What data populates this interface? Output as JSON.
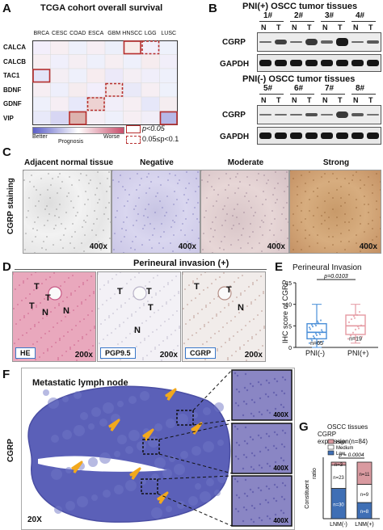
{
  "panels": {
    "A": {
      "letter": "A",
      "title": "TCGA cohort  overall survival",
      "columns": [
        "BRCA",
        "CESC",
        "COAD",
        "ESCA",
        "GBM",
        "HNSCC",
        "LGG",
        "LUSC"
      ],
      "rows": [
        "CALCA",
        "CALCB",
        "TAC1",
        "BDNF",
        "GDNF",
        "VIP"
      ],
      "legend_left": "Better",
      "legend_mid": "Prognosis",
      "legend_right": "Worse",
      "sig1": "p<0.05",
      "sig2": "0.05≤p<0.1"
    },
    "B": {
      "letter": "B",
      "title_top": "PNI(+) OSCC tumor tissues",
      "title_bottom": "PNI(-) OSCC tumor tissues",
      "samples_top": [
        "1#",
        "2#",
        "3#",
        "4#"
      ],
      "samples_bottom": [
        "5#",
        "6#",
        "7#",
        "8#"
      ],
      "lane_N": "N",
      "lane_T": "T",
      "row1": "CGRP",
      "row2": "GAPDH"
    },
    "C": {
      "letter": "C",
      "side": "CGRP staining",
      "cols": [
        "Adjacent normal tissue",
        "Negative",
        "Moderate",
        "Strong"
      ],
      "mag": "400x"
    },
    "D": {
      "letter": "D",
      "title": "Perineural invasion  (+)",
      "tags": [
        "HE",
        "PGP9.5",
        "CGRP"
      ],
      "mag": "200x",
      "T": "T",
      "N": "N"
    },
    "E": {
      "letter": "E",
      "title": "Perineural Invasion",
      "pval": "p=0.0103",
      "ylabel": "IHC score of CGRP",
      "n1": "n=65",
      "n2": "n=19",
      "x1": "PNI(-)",
      "x2": "PNI(+)",
      "yticks": [
        "15",
        "10",
        "5",
        "0"
      ]
    },
    "F": {
      "letter": "F",
      "side": "CGRP",
      "title": "Metastatic lymph node",
      "mag_main": "20X",
      "mag_inset": "400X"
    },
    "G": {
      "letter": "G",
      "title1": "OSCC tissues",
      "title2": "CGRP expression(n=84)",
      "legend": [
        "High",
        "Medium",
        "Low"
      ],
      "pval": "p = 0.0004",
      "ylabel1": "Constituent",
      "ylabel2": "ratio",
      "x1": "LNM(-)",
      "x2": "LNM(+)"
    }
  },
  "chart_data": {
    "type": "bar",
    "categories": [
      "LNM(-)",
      "LNM(+)"
    ],
    "series": [
      {
        "name": "Low",
        "values": [
          30,
          8
        ]
      },
      {
        "name": "Medium",
        "values": [
          23,
          9
        ]
      },
      {
        "name": "High",
        "values": [
          3,
          11
        ]
      }
    ],
    "ylabel": "Constituent ratio"
  },
  "colors": {
    "blue_label": "#3a78c9",
    "red_sig": "#b83030",
    "arrow": "#f2a81d",
    "he_pink": "#e7a3b9",
    "ihc_purple": "#8a86c4",
    "box_blue": "#4a8fd8",
    "box_pink": "#e59aa2"
  }
}
